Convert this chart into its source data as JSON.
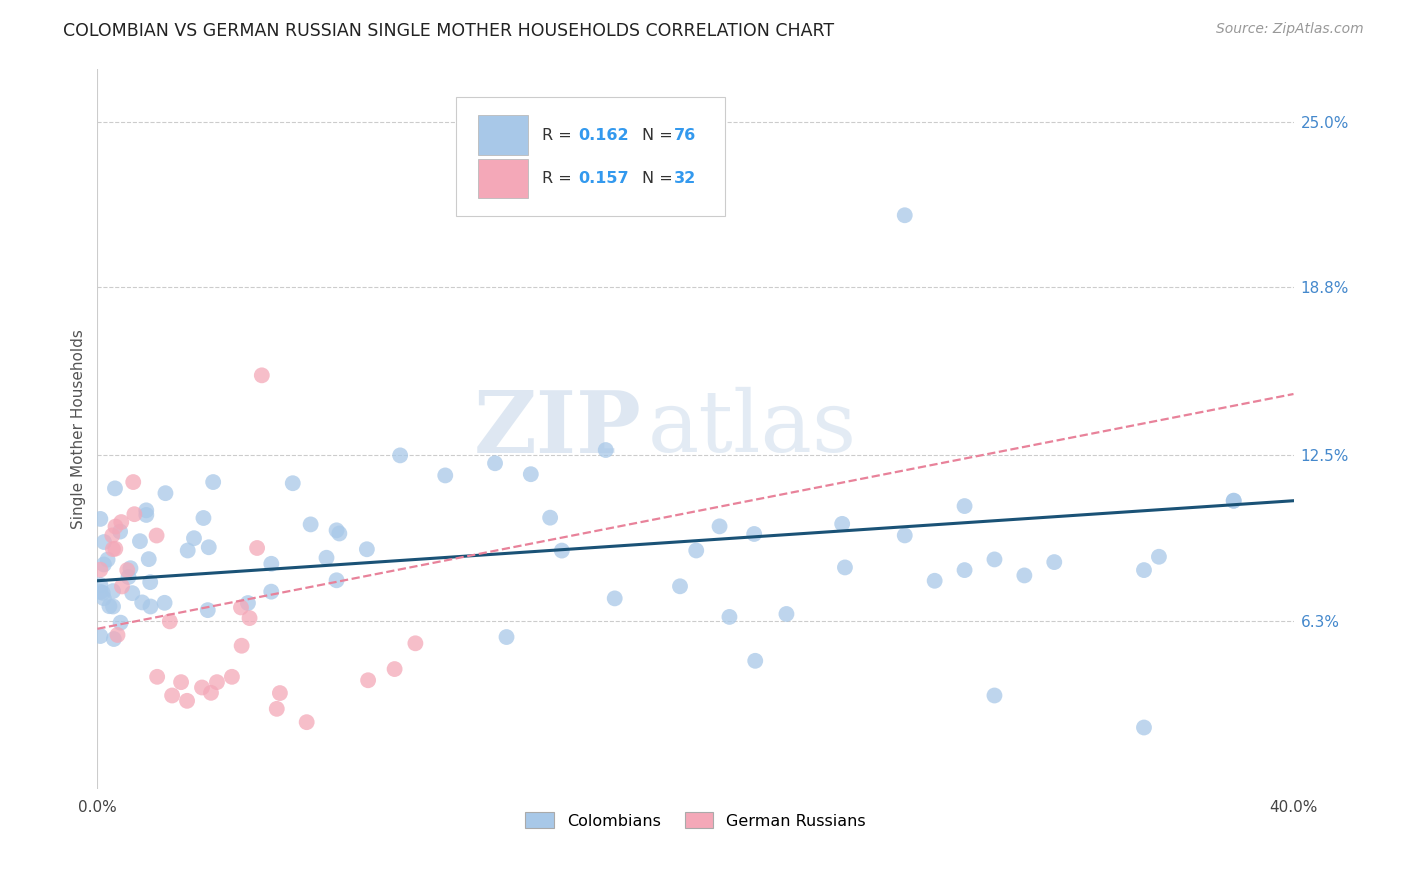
{
  "title": "COLOMBIAN VS GERMAN RUSSIAN SINGLE MOTHER HOUSEHOLDS CORRELATION CHART",
  "source": "Source: ZipAtlas.com",
  "ylabel": "Single Mother Households",
  "xlim": [
    0.0,
    0.4
  ],
  "ylim": [
    0.0,
    0.27
  ],
  "ytick_labels": [
    "6.3%",
    "12.5%",
    "18.8%",
    "25.0%"
  ],
  "ytick_positions": [
    0.063,
    0.125,
    0.188,
    0.25
  ],
  "grid_color": "#cccccc",
  "background_color": "#ffffff",
  "watermark_zip": "ZIP",
  "watermark_atlas": "atlas",
  "legend_r1": "R = 0.162",
  "legend_n1": "N = 76",
  "legend_r2": "R = 0.157",
  "legend_n2": "N = 32",
  "colombian_color": "#a8c8e8",
  "german_russian_color": "#f4a8b8",
  "line_color_blue": "#1a5276",
  "line_color_pink": "#e8829a",
  "trend_blue_x0": 0.0,
  "trend_blue_y0": 0.078,
  "trend_blue_x1": 0.4,
  "trend_blue_y1": 0.108,
  "trend_pink_x0": 0.0,
  "trend_pink_y0": 0.06,
  "trend_pink_x1": 0.4,
  "trend_pink_y1": 0.148
}
